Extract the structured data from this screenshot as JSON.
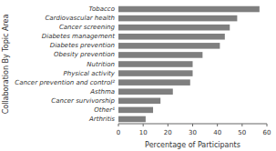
{
  "chart_data": {
    "type": "bar",
    "orientation": "horizontal",
    "categories": [
      "Arthritis",
      "Other¹",
      "Cancer survivorship",
      "Asthma",
      "Cancer prevention and control²",
      "Physical activity",
      "Nutrition",
      "Obesity prevention",
      "Diabetes prevention",
      "Diabetes management",
      "Cancer screening",
      "Cardiovascular health",
      "Tobacco"
    ],
    "values": [
      11,
      14,
      17,
      22,
      29,
      30,
      30,
      34,
      41,
      43,
      45,
      48,
      57
    ],
    "color": "#7f7f7f",
    "xlabel": "Percentage of Participants",
    "ylabel": "Collaboration By Topic Area",
    "xlim": [
      0,
      60
    ],
    "xticks": [
      0,
      10,
      20,
      30,
      40,
      50,
      60
    ]
  }
}
